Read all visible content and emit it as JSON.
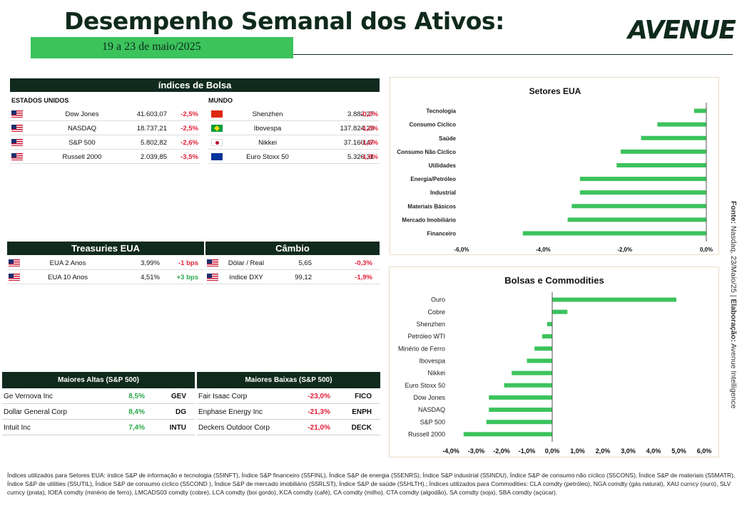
{
  "header": {
    "title": "Desempenho Semanal dos Ativos:",
    "date_range": "19 a 23 de maio/2025",
    "logo_text": "AVENUE",
    "accent_color": "#3cc35c",
    "dark_color": "#102a1e"
  },
  "indices": {
    "title": "índices de Bolsa",
    "us_heading": "ESTADOS UNIDOS",
    "world_heading": "MUNDO",
    "us_rows": [
      {
        "flag": "us-flag",
        "name": "Dow Jones",
        "value": "41.603,07",
        "change": "-2,5%"
      },
      {
        "flag": "us-flag",
        "name": "NASDAQ",
        "value": "18.737,21",
        "change": "-2,5%"
      },
      {
        "flag": "us-flag",
        "name": "S&P 500",
        "value": "5.802,82",
        "change": "-2,6%"
      },
      {
        "flag": "us-flag",
        "name": "Russell 2000",
        "value": "2.039,85",
        "change": "-3,5%"
      }
    ],
    "world_rows": [
      {
        "flag": "china-flag",
        "name": "Shenzhen",
        "value": "3.882,27",
        "change": "-0,2%"
      },
      {
        "flag": "brazil-flag",
        "name": "Ibovespa",
        "value": "137.824,29",
        "change": "-1,0%"
      },
      {
        "flag": "japan-flag",
        "name": "Nikkei",
        "value": "37.160,47",
        "change": "-1,6%"
      },
      {
        "flag": "eu-flag",
        "name": "Euro Stoxx 50",
        "value": "5.326,31",
        "change": "-1,9%"
      }
    ]
  },
  "treasuries": {
    "title": "Treasuries EUA",
    "rows": [
      {
        "flag": "us-flag",
        "name": "EUA 2 Anos",
        "value": "3,99%",
        "change": "-1 bps"
      },
      {
        "flag": "us-flag",
        "name": "EUA 10 Anos",
        "value": "4,51%",
        "change": "+3 bps"
      }
    ]
  },
  "cambio": {
    "title": "Câmbio",
    "rows": [
      {
        "flag": "us-flag",
        "name": "Dólar / Real",
        "value": "5,65",
        "change": "-0,3%"
      },
      {
        "flag": "us-flag",
        "name": "índice DXY",
        "value": "99,12",
        "change": "-1,9%"
      }
    ]
  },
  "gainers": {
    "title": "Maiores Altas (S&P 500)",
    "rows": [
      {
        "name": "Ge Vernova Inc",
        "change": "8,5%",
        "ticker": "GEV"
      },
      {
        "name": "Dollar General Corp",
        "change": "8,4%",
        "ticker": "DG"
      },
      {
        "name": "Intuit Inc",
        "change": "7,4%",
        "ticker": "INTU"
      }
    ]
  },
  "losers": {
    "title": "Maiores Baixas (S&P 500)",
    "rows": [
      {
        "name": "Fair Isaac Corp",
        "change": "-23,0%",
        "ticker": "FICO"
      },
      {
        "name": "Enphase Energy Inc",
        "change": "-21,3%",
        "ticker": "ENPH"
      },
      {
        "name": "Deckers Outdoor Corp",
        "change": "-21,0%",
        "ticker": "DECK"
      }
    ]
  },
  "chart_data": [
    {
      "type": "bar",
      "orientation": "horizontal",
      "title": "Setores EUA",
      "categories": [
        "Tecnologia",
        "Consumo Cíclico",
        "Saúde",
        "Consumo Não Cíclico",
        "Utilidades",
        "Energia/Petróleo",
        "Industrial",
        "Materiais Básicos",
        "Mercado Imobiliário",
        "Financeiro"
      ],
      "values": [
        -0.3,
        -1.2,
        -1.6,
        -2.1,
        -2.2,
        -3.1,
        -3.1,
        -3.3,
        -3.4,
        -4.5
      ],
      "xlim": [
        -6,
        0
      ],
      "ticks": [
        -6,
        -4,
        -2,
        0
      ],
      "tick_labels": [
        "-6,0%",
        "-4,0%",
        "-2,0%",
        "0,0%"
      ],
      "bar_color": "#3cc35c",
      "grid": false
    },
    {
      "type": "bar",
      "orientation": "horizontal",
      "title": "Bolsas e Commodities",
      "categories": [
        "Ouro",
        "Cobre",
        "Shenzhen",
        "Petróleo WTI",
        "Minério de Ferro",
        "Ibovespa",
        "Nikkei",
        "Euro Stoxx 50",
        "Dow Jones",
        "NASDAQ",
        "S&P 500",
        "Russell 2000"
      ],
      "values": [
        4.9,
        0.6,
        -0.2,
        -0.4,
        -0.7,
        -1.0,
        -1.6,
        -1.9,
        -2.5,
        -2.5,
        -2.6,
        -3.5
      ],
      "xlim": [
        -4,
        6
      ],
      "ticks": [
        -4,
        -3,
        -2,
        -1,
        0,
        1,
        2,
        3,
        4,
        5,
        6
      ],
      "tick_labels": [
        "-4,0%",
        "-3,0%",
        "-2,0%",
        "-1,0%",
        "0,0%",
        "1,0%",
        "2,0%",
        "3,0%",
        "4,0%",
        "5,0%",
        "6,0%"
      ],
      "bar_color": "#3cc35c",
      "grid": false
    }
  ],
  "side_note": {
    "source_label": "Fonte:",
    "source_text": " Nasdaq, 23/Maio/25 | ",
    "author_label": "Elaboração:",
    "author_text": " Avenue Intelligence"
  },
  "footnote": "Índices utilizados para Setores EUA: índice S&P de informação e tecnologia (S5INFT), Índice S&P financeiro (S5FINL), Índice S&P de energia (S5ENRS), Índice S&P industrial (S5INDU), Índice S&P de consumo não cíclico (S5CONS), Índice S&P de materiais (S5MATR), Índice S&P de utilities (S5UTIL), Índice S&P de consumo cíclico (S5COND ), Índice S&P de mercado imobiliário (S5RLST), Índice S&P de saúde (S5HLTH).; Índices utilizados para Commodities: CLA comdty (petróleo), NGA comdty (gás natural), XAU curncy (ouro), SLV curncy (prata), IOEA comdty (minério de ferro), LMCADS03 comdty (cobre), LCA comdty (boi gordo), KCA comdty (café), CA comdty (milho), CTA comdty (algodão), SA comdty (soja), SBA comdty (açúcar)."
}
